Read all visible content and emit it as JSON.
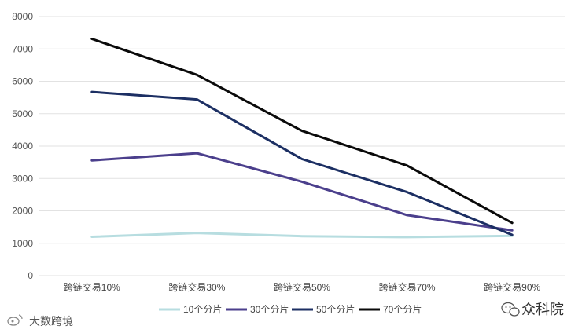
{
  "chart_data": {
    "type": "line",
    "categories": [
      "跨链交易10%",
      "跨链交易30%",
      "跨链交易50%",
      "跨链交易70%",
      "跨链交易90%"
    ],
    "series": [
      {
        "name": "10个分片",
        "color": "#b7dde0",
        "values": [
          1200,
          1320,
          1220,
          1190,
          1230
        ]
      },
      {
        "name": "30个分片",
        "color": "#4b3f8c",
        "values": [
          3560,
          3780,
          2900,
          1870,
          1400
        ]
      },
      {
        "name": "50个分片",
        "color": "#1c2f63",
        "values": [
          5670,
          5440,
          3600,
          2580,
          1260
        ]
      },
      {
        "name": "70个分片",
        "color": "#0a0a0a",
        "values": [
          7310,
          6200,
          4470,
          3400,
          1630
        ]
      }
    ],
    "ylim": [
      0,
      8000
    ],
    "yticks": [
      0,
      1000,
      2000,
      3000,
      4000,
      5000,
      6000,
      7000,
      8000
    ],
    "grid": true,
    "legend_position": "bottom",
    "title": "",
    "xlabel": "",
    "ylabel": ""
  },
  "watermark": {
    "left_text": "大数跨境",
    "left_icon": "weibo-icon",
    "right_text": "众科院",
    "right_icon": "wechat-icon"
  }
}
